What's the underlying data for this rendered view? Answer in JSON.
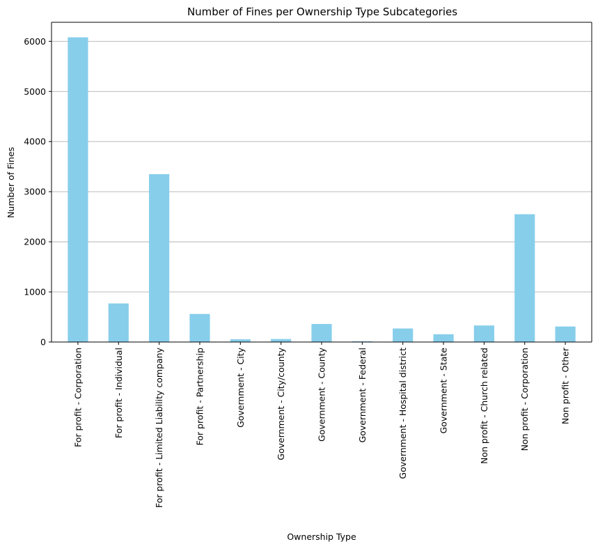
{
  "chart_data": {
    "type": "bar",
    "title": "Number of Fines per Ownership Type Subcategories",
    "xlabel": "Ownership Type",
    "ylabel": "Number of Fines",
    "categories": [
      "For profit - Corporation",
      "For profit - Individual",
      "For profit - Limited Liability company",
      "For profit - Partnership",
      "Government - City",
      "Government - City/county",
      "Government - County",
      "Government - Federal",
      "Government - Hospital district",
      "Government - State",
      "Non profit - Church related",
      "Non profit - Corporation",
      "Non profit - Other"
    ],
    "values": [
      6080,
      770,
      3350,
      560,
      55,
      60,
      360,
      15,
      270,
      155,
      330,
      2550,
      310
    ],
    "ylim": [
      0,
      6380
    ],
    "yticks": [
      0,
      1000,
      2000,
      3000,
      4000,
      5000,
      6000
    ],
    "grid": "y-axis major gridlines",
    "colors": {
      "bar": "#87ceeb",
      "grid": "#b0b0b0",
      "axis": "#000000"
    }
  }
}
